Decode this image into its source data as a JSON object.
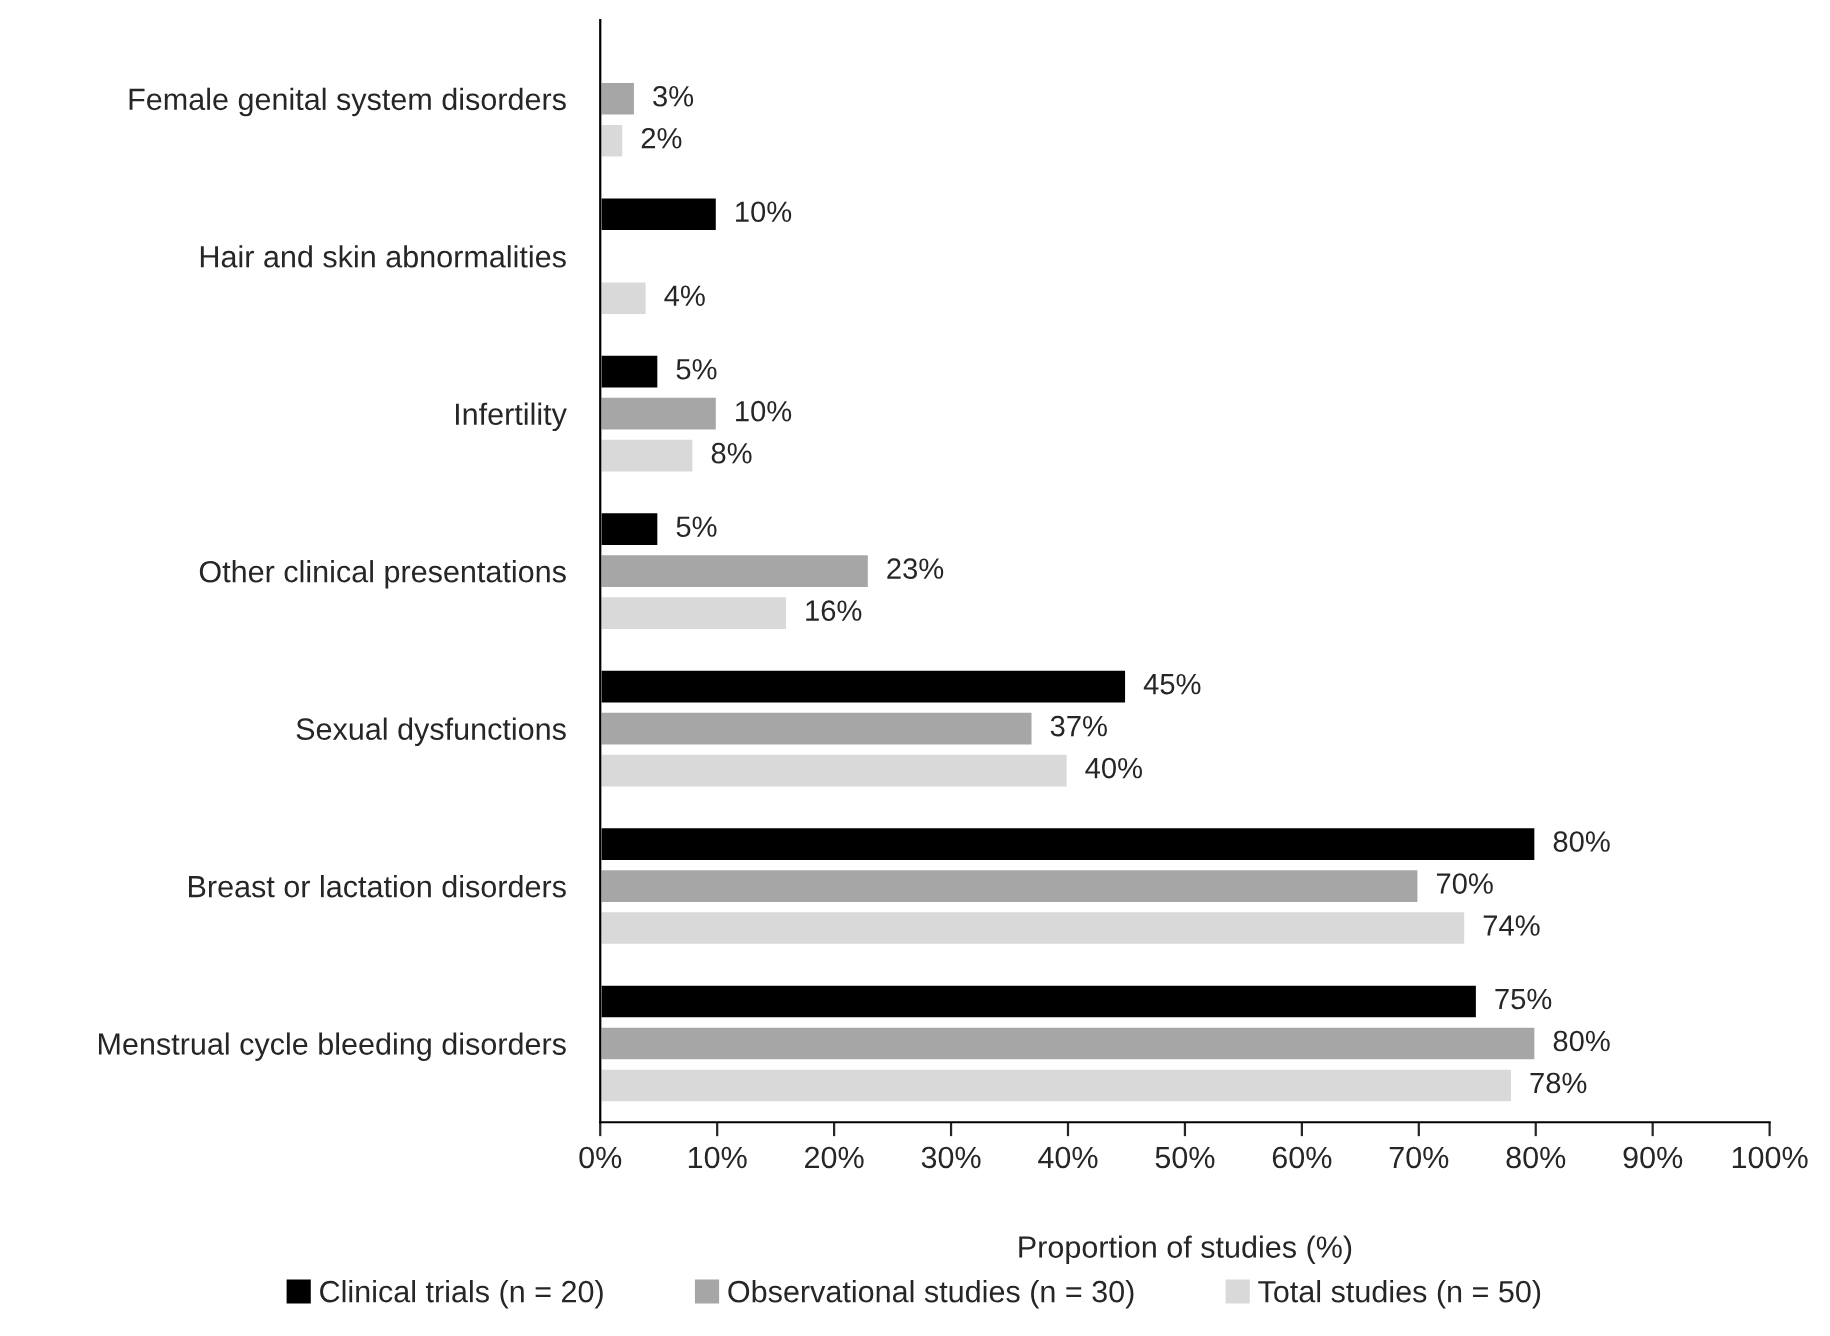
{
  "chart_data": {
    "type": "bar",
    "orientation": "horizontal",
    "xlabel": "Proportion of studies (%)",
    "categories": [
      "Female genital system disorders",
      "Hair and skin abnormalities",
      "Infertility",
      "Other clinical presentations",
      "Sexual dysfunctions",
      "Breast or lactation disorders",
      "Menstrual cycle bleeding disorders"
    ],
    "series": [
      {
        "name": "Clinical trials (n = 20)",
        "color": "#000000",
        "values": [
          null,
          10,
          5,
          5,
          45,
          80,
          75
        ],
        "value_labels": [
          null,
          "10%",
          "5%",
          "5%",
          "45%",
          "80%",
          "75%"
        ]
      },
      {
        "name": "Observational studies (n = 30)",
        "color": "#a6a6a6",
        "values": [
          3,
          null,
          10,
          23,
          37,
          70,
          80
        ],
        "value_labels": [
          "3%",
          null,
          "10%",
          "23%",
          "37%",
          "70%",
          "80%"
        ]
      },
      {
        "name": "Total studies (n = 50)",
        "color": "#d9d9d9",
        "values": [
          2,
          4,
          8,
          16,
          40,
          74,
          78
        ],
        "value_labels": [
          "2%",
          "4%",
          "8%",
          "16%",
          "40%",
          "74%",
          "78%"
        ]
      }
    ],
    "xlim": [
      0,
      100
    ],
    "xticks": [
      {
        "value": 0,
        "label": "0%"
      },
      {
        "value": 10,
        "label": "10%"
      },
      {
        "value": 20,
        "label": "20%"
      },
      {
        "value": 30,
        "label": "30%"
      },
      {
        "value": 40,
        "label": "40%"
      },
      {
        "value": 50,
        "label": "50%"
      },
      {
        "value": 60,
        "label": "60%"
      },
      {
        "value": 70,
        "label": "70%"
      },
      {
        "value": 80,
        "label": "80%"
      },
      {
        "value": 90,
        "label": "90%"
      },
      {
        "value": 100,
        "label": "100%"
      }
    ],
    "grid": false,
    "legend": "bottom"
  }
}
